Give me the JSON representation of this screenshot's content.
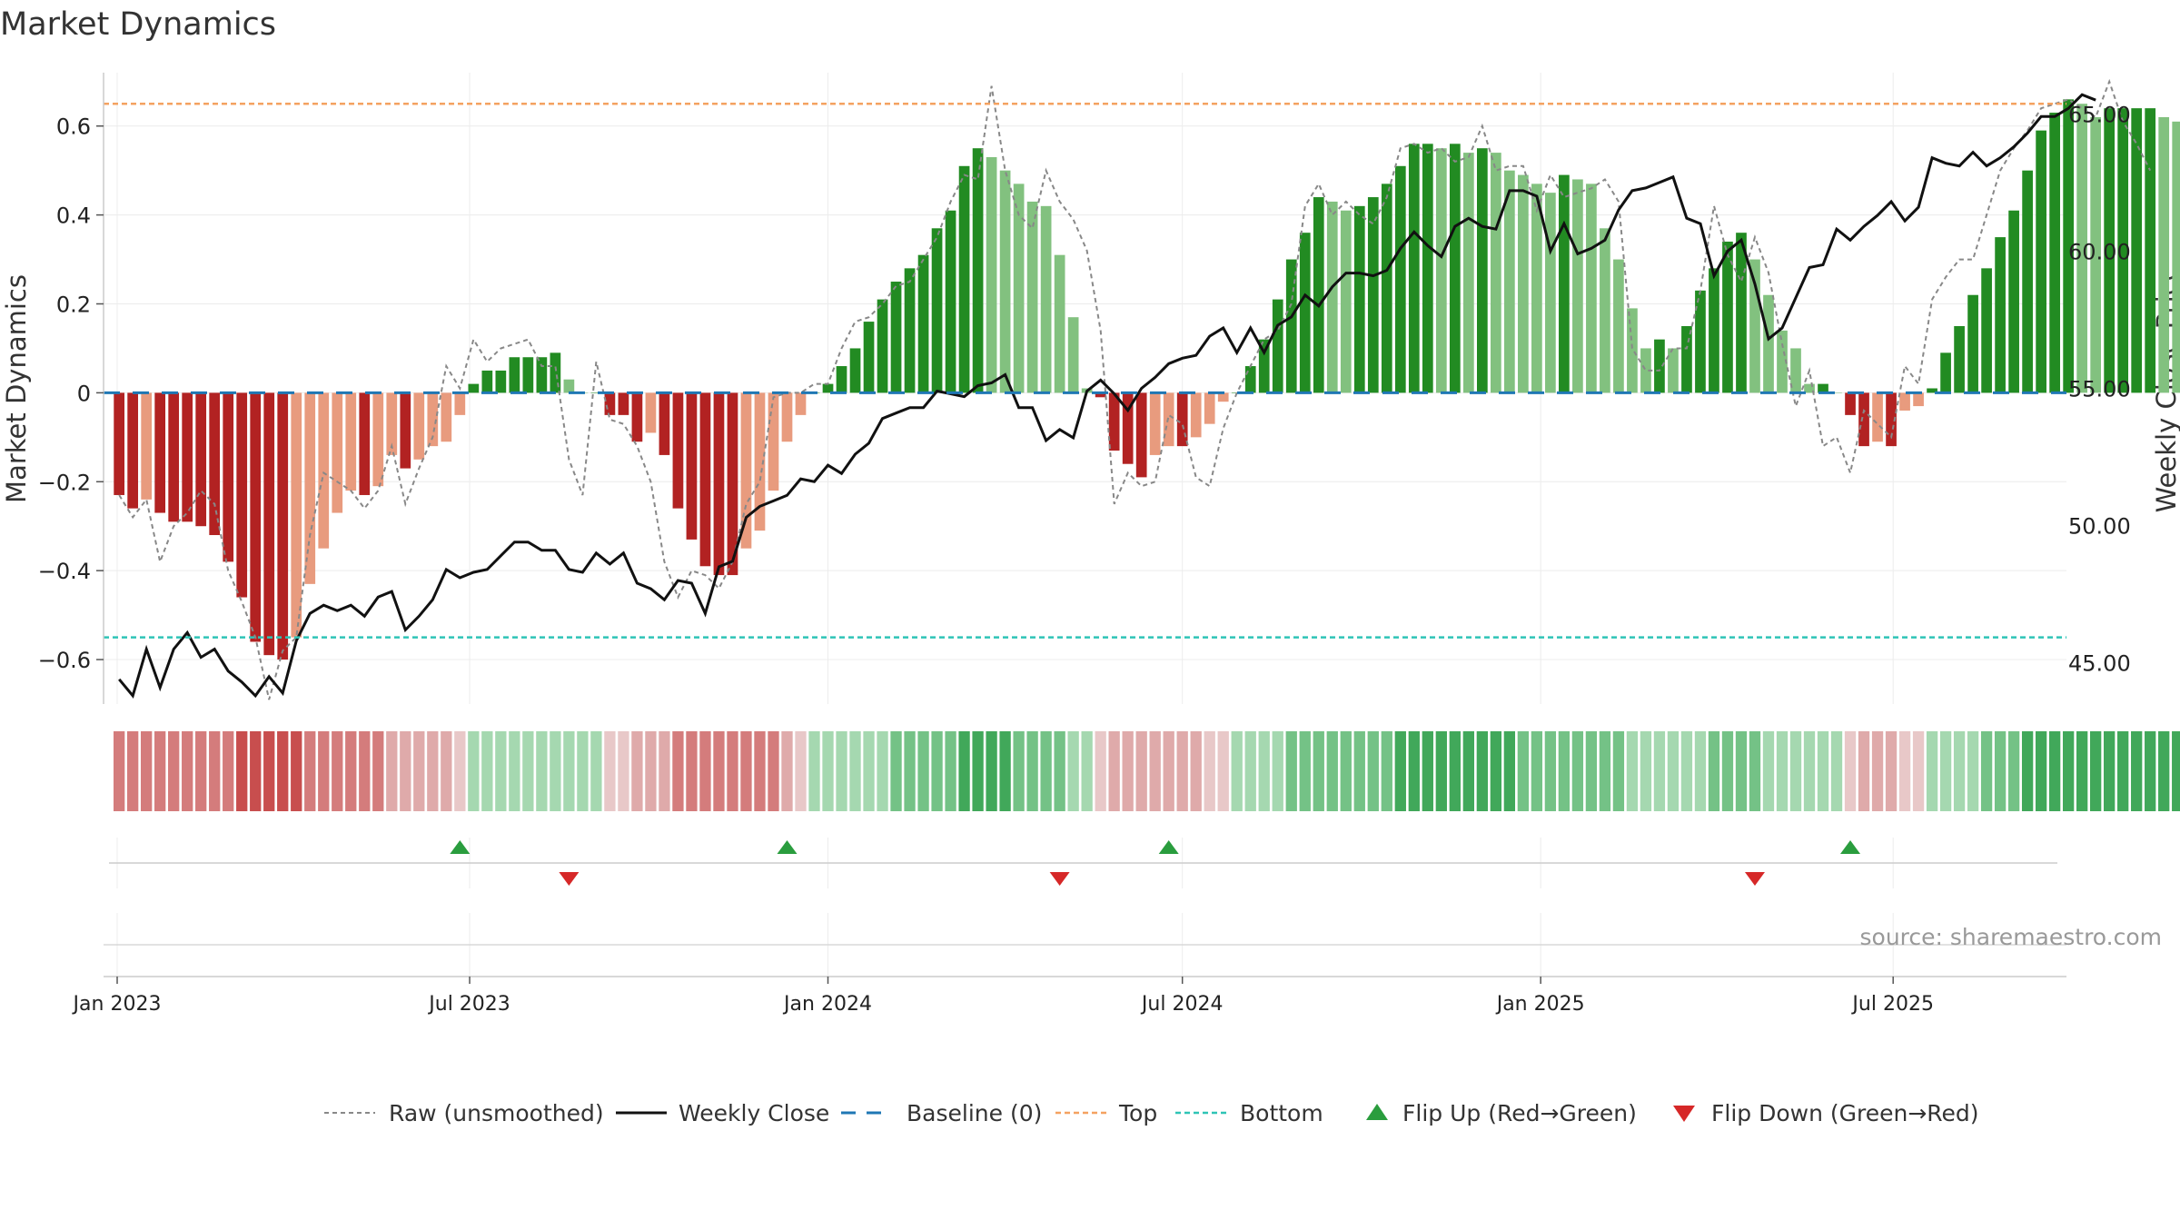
{
  "chart_data": {
    "type": "bar",
    "title": "Market Dynamics",
    "ylabel": "Market Dynamics",
    "ylabel_right": "Weekly Close Price",
    "ylim": [
      -0.7,
      0.72
    ],
    "ylim_right": [
      43.5,
      66.5
    ],
    "yticks": [
      -0.6,
      -0.4,
      -0.2,
      0,
      0.2,
      0.4,
      0.6
    ],
    "yticks_right": [
      45,
      50,
      55,
      60,
      65
    ],
    "yticks_right_labels": [
      "45.00",
      "50.00",
      "55.00",
      "60.00",
      "65.00"
    ],
    "yticks_labels": [
      "−0.6",
      "−0.4",
      "−0.2",
      "0",
      "0.2",
      "0.4",
      "0.6"
    ],
    "x_start": "2023-01-02",
    "x_step_days": 7,
    "xlim": [
      "2022-12-25",
      "2025-09-28"
    ],
    "xticks": [
      {
        "date": "2023-01-01",
        "label": "Jan 2023"
      },
      {
        "date": "2023-07-01",
        "label": "Jul 2023"
      },
      {
        "date": "2024-01-01",
        "label": "Jan 2024"
      },
      {
        "date": "2024-07-01",
        "label": "Jul 2024"
      },
      {
        "date": "2025-01-01",
        "label": "Jan 2025"
      },
      {
        "date": "2025-07-01",
        "label": "Jul 2025"
      }
    ],
    "top_level": 0.65,
    "bottom_level": -0.55,
    "baseline": 0,
    "smoothed_values": [
      -0.23,
      -0.26,
      -0.24,
      -0.27,
      -0.29,
      -0.29,
      -0.3,
      -0.32,
      -0.38,
      -0.46,
      -0.56,
      -0.59,
      -0.6,
      -0.55,
      -0.43,
      -0.35,
      -0.27,
      -0.22,
      -0.23,
      -0.21,
      -0.14,
      -0.17,
      -0.15,
      -0.12,
      -0.11,
      -0.05,
      0.02,
      0.05,
      0.05,
      0.08,
      0.08,
      0.08,
      0.09,
      0.03,
      0.0,
      0.0,
      -0.05,
      -0.05,
      -0.11,
      -0.09,
      -0.14,
      -0.26,
      -0.33,
      -0.39,
      -0.41,
      -0.41,
      -0.35,
      -0.31,
      -0.22,
      -0.11,
      -0.05,
      0.0,
      0.02,
      0.06,
      0.1,
      0.16,
      0.21,
      0.25,
      0.28,
      0.31,
      0.37,
      0.41,
      0.51,
      0.55,
      0.53,
      0.5,
      0.47,
      0.43,
      0.42,
      0.31,
      0.17,
      0.01,
      -0.01,
      -0.13,
      -0.16,
      -0.19,
      -0.14,
      -0.12,
      -0.12,
      -0.1,
      -0.07,
      -0.02,
      0.0,
      0.06,
      0.12,
      0.21,
      0.3,
      0.36,
      0.44,
      0.43,
      0.41,
      0.42,
      0.44,
      0.47,
      0.51,
      0.56,
      0.56,
      0.55,
      0.56,
      0.54,
      0.55,
      0.54,
      0.5,
      0.49,
      0.47,
      0.45,
      0.49,
      0.48,
      0.47,
      0.37,
      0.3,
      0.19,
      0.1,
      0.12,
      0.1,
      0.15,
      0.23,
      0.28,
      0.34,
      0.36,
      0.3,
      0.22,
      0.14,
      0.1,
      0.02,
      0.02,
      0.0,
      -0.05,
      -0.12,
      -0.11,
      -0.12,
      -0.04,
      -0.03,
      0.01,
      0.09,
      0.15,
      0.22,
      0.28,
      0.35,
      0.41,
      0.5,
      0.59,
      0.63,
      0.66,
      0.65,
      0.62,
      0.64,
      0.64,
      0.64,
      0.64,
      0.62,
      0.61
    ],
    "raw_values": [
      -0.23,
      -0.28,
      -0.24,
      -0.38,
      -0.3,
      -0.27,
      -0.22,
      -0.25,
      -0.4,
      -0.47,
      -0.55,
      -0.69,
      -0.58,
      -0.55,
      -0.32,
      -0.18,
      -0.2,
      -0.22,
      -0.26,
      -0.22,
      -0.12,
      -0.25,
      -0.17,
      -0.1,
      0.06,
      0.01,
      0.12,
      0.07,
      0.1,
      0.11,
      0.12,
      0.06,
      0.06,
      -0.15,
      -0.23,
      0.07,
      -0.06,
      -0.07,
      -0.12,
      -0.2,
      -0.38,
      -0.46,
      -0.4,
      -0.41,
      -0.44,
      -0.38,
      -0.25,
      -0.2,
      -0.01,
      0.0,
      0.0,
      0.02,
      0.02,
      0.1,
      0.16,
      0.17,
      0.2,
      0.24,
      0.25,
      0.3,
      0.35,
      0.43,
      0.49,
      0.48,
      0.69,
      0.5,
      0.4,
      0.37,
      0.5,
      0.43,
      0.39,
      0.32,
      0.14,
      -0.25,
      -0.18,
      -0.21,
      -0.2,
      -0.05,
      -0.07,
      -0.19,
      -0.21,
      -0.08,
      0.0,
      0.06,
      0.12,
      0.14,
      0.2,
      0.42,
      0.47,
      0.4,
      0.43,
      0.4,
      0.38,
      0.44,
      0.55,
      0.56,
      0.54,
      0.55,
      0.52,
      0.53,
      0.6,
      0.5,
      0.51,
      0.51,
      0.41,
      0.49,
      0.44,
      0.45,
      0.46,
      0.48,
      0.43,
      0.1,
      0.05,
      0.05,
      0.1,
      0.1,
      0.23,
      0.42,
      0.31,
      0.25,
      0.35,
      0.27,
      0.11,
      -0.03,
      0.05,
      -0.12,
      -0.1,
      -0.18,
      -0.04,
      -0.07,
      -0.1,
      0.06,
      0.02,
      0.21,
      0.26,
      0.3,
      0.3,
      0.4,
      0.5,
      0.55,
      0.59,
      0.64,
      0.65,
      0.66,
      0.64,
      0.62,
      0.7,
      0.61,
      0.56,
      0.5
    ],
    "weekly_close": [
      44.4,
      43.8,
      45.5,
      44.1,
      45.5,
      46.1,
      45.2,
      45.5,
      44.7,
      44.3,
      43.8,
      44.5,
      43.9,
      45.8,
      46.8,
      47.1,
      46.9,
      47.1,
      46.7,
      47.4,
      47.6,
      46.2,
      46.7,
      47.3,
      48.4,
      48.1,
      48.3,
      48.4,
      48.9,
      49.4,
      49.4,
      49.1,
      49.1,
      48.4,
      48.3,
      49.0,
      48.6,
      49.0,
      47.9,
      47.7,
      47.3,
      48.0,
      47.9,
      46.8,
      48.5,
      48.7,
      50.3,
      50.7,
      50.9,
      51.1,
      51.7,
      51.6,
      52.2,
      51.9,
      52.6,
      53.0,
      53.9,
      54.1,
      54.3,
      54.3,
      54.9,
      54.8,
      54.7,
      55.1,
      55.2,
      55.5,
      54.3,
      54.3,
      53.1,
      53.5,
      53.2,
      54.9,
      55.3,
      54.8,
      54.2,
      55.0,
      55.4,
      55.9,
      56.1,
      56.2,
      56.9,
      57.2,
      56.3,
      57.2,
      56.3,
      57.3,
      57.6,
      58.4,
      58.0,
      58.7,
      59.2,
      59.2,
      59.1,
      59.3,
      60.1,
      60.7,
      60.2,
      59.8,
      60.9,
      61.2,
      60.9,
      60.8,
      62.2,
      62.2,
      62.0,
      60.0,
      61.0,
      59.9,
      60.1,
      60.4,
      61.5,
      62.2,
      62.3,
      62.5,
      62.7,
      61.2,
      61.0,
      59.1,
      60.0,
      60.4,
      58.8,
      56.8,
      57.2,
      58.3,
      59.4,
      59.5,
      60.8,
      60.4,
      60.9,
      61.3,
      61.8,
      61.1,
      61.6,
      63.4,
      63.2,
      63.1,
      63.6,
      63.1,
      63.4,
      63.8,
      64.3,
      64.9,
      64.9,
      65.2,
      65.7,
      65.5
    ],
    "regime_bar_colors": [
      "#d47c7c",
      "#dfaaaa",
      "#c84e4e",
      "#e8c8c8",
      "#a5d8b0",
      "#74c286",
      "#41a85a"
    ],
    "colors": {
      "bar_green_strong": "#228b22",
      "bar_green_light": "#82c17f",
      "bar_red_strong": "#b22222",
      "bar_red_light": "#e89b7e",
      "raw": "#888888",
      "close": "#111111",
      "baseline": "#1f77b4",
      "top": "#f4a261",
      "bottom": "#2ec4b6",
      "flip_up": "#2a9d3e",
      "flip_down": "#d62828"
    },
    "flips_up": [
      "2023-06-26",
      "2023-12-11",
      "2024-06-24",
      "2025-06-09"
    ],
    "flips_down": [
      "2023-08-21",
      "2024-04-29",
      "2025-04-21"
    ],
    "legend": [
      {
        "key": "raw",
        "label": "Raw (unsmoothed)"
      },
      {
        "key": "close",
        "label": "Weekly Close"
      },
      {
        "key": "baseline",
        "label": "Baseline (0)"
      },
      {
        "key": "top",
        "label": "Top"
      },
      {
        "key": "bottom",
        "label": "Bottom"
      },
      {
        "key": "flip_up",
        "label": "Flip Up (Red→Green)"
      },
      {
        "key": "flip_down",
        "label": "Flip Down (Green→Red)"
      }
    ],
    "source": "source: sharemaestro.com",
    "grid": true,
    "legend_position": "bottom"
  }
}
